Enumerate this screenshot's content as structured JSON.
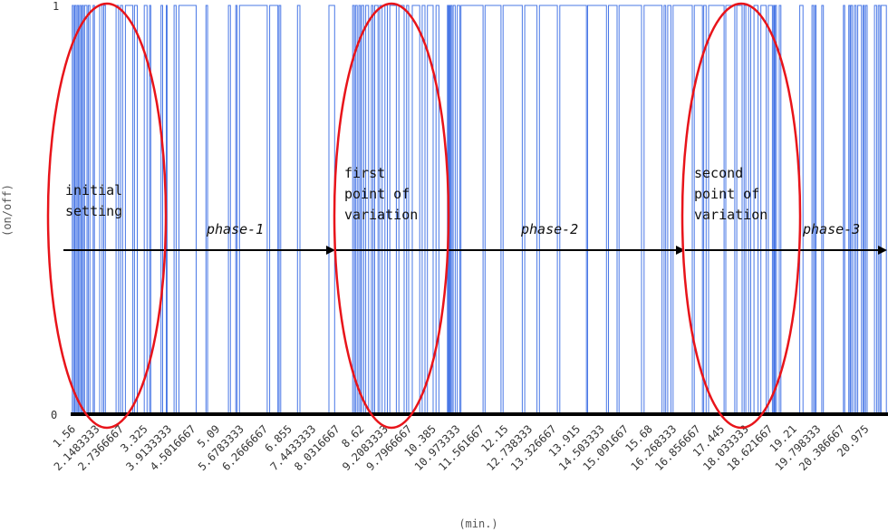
{
  "chart_data": {
    "type": "line",
    "xlabel": "(min.)",
    "ylabel": "(on/off)",
    "xlim": [
      1.56,
      21.56
    ],
    "ylim": [
      0,
      1
    ],
    "y_ticks": [
      "0",
      "1"
    ],
    "x_tick_labels": [
      "1.56",
      "2.1483333",
      "2.7366667",
      "3.325",
      "3.9133333",
      "4.5016667",
      "5.09",
      "5.6783333",
      "6.2666667",
      "6.855",
      "7.4433333",
      "8.0316667",
      "8.62",
      "9.2083333",
      "9.7966667",
      "10.385",
      "10.973333",
      "11.561667",
      "12.15",
      "12.738333",
      "13.326667",
      "13.915",
      "14.503333",
      "15.091667",
      "15.68",
      "16.268333",
      "16.856667",
      "17.445",
      "18.033333",
      "18.621667",
      "19.21",
      "19.798333",
      "20.386667",
      "20.975"
    ],
    "series": [
      {
        "color": "#4a78e6",
        "switch_times": [
          1.6,
          1.63,
          1.66,
          1.69,
          1.72,
          1.75,
          1.78,
          1.81,
          1.84,
          1.87,
          1.9,
          1.96,
          1.99,
          2.03,
          2.11,
          2.14,
          2.27,
          2.33,
          2.37,
          2.41,
          2.67,
          2.73,
          2.78,
          2.83,
          2.9,
          3.08,
          3.12,
          3.19,
          3.36,
          3.43,
          3.49,
          3.52,
          3.77,
          3.81,
          3.9,
          3.92,
          4.09,
          4.14,
          4.21,
          4.63,
          4.87,
          4.91,
          5.42,
          5.47,
          5.6,
          5.63,
          5.69,
          6.37,
          6.43,
          6.63,
          6.66,
          6.7,
          7.11,
          7.17,
          7.88,
          8.02,
          8.46,
          8.5,
          8.53,
          8.57,
          8.61,
          8.65,
          8.68,
          8.73,
          8.78,
          8.85,
          8.92,
          8.96,
          9.0,
          9.08,
          9.12,
          9.18,
          9.25,
          9.31,
          9.37,
          9.53,
          9.59,
          9.72,
          9.78,
          9.83,
          9.92,
          10.1,
          10.16,
          10.23,
          10.29,
          10.43,
          10.5,
          10.57,
          10.78,
          10.8,
          10.82,
          10.84,
          10.86,
          10.89,
          10.92,
          10.97,
          11.02,
          11.08,
          11.11,
          11.65,
          11.7,
          12.09,
          12.14,
          12.61,
          12.67,
          12.97,
          13.03,
          13.47,
          13.53,
          14.18,
          14.21,
          14.67,
          14.72,
          14.93,
          14.98,
          15.53,
          15.59,
          16.03,
          16.08,
          16.12,
          16.17,
          16.25,
          16.3,
          16.77,
          16.82,
          17.02,
          17.05,
          17.11,
          17.17,
          17.55,
          17.59,
          17.81,
          17.86,
          17.99,
          18.04,
          18.08,
          18.15,
          18.2,
          18.28,
          18.38,
          18.45,
          18.58,
          18.63,
          18.73,
          18.76,
          18.78,
          18.8,
          18.83,
          18.9,
          18.94,
          19.4,
          19.48,
          19.7,
          19.74,
          19.77,
          19.8,
          19.94,
          19.98,
          20.47,
          20.5,
          20.6,
          20.63,
          20.65,
          20.69,
          20.74,
          20.78,
          20.82,
          20.91,
          20.95,
          20.98,
          21.01,
          21.05,
          21.23,
          21.28,
          21.32,
          21.36,
          21.39,
          21.52
        ]
      }
    ],
    "annotations": {
      "initial": [
        "initial",
        "setting"
      ],
      "first": [
        "first",
        "point of",
        "variation"
      ],
      "second": [
        "second",
        "point of",
        "variation"
      ],
      "phases": [
        "phase-1",
        "phase-2",
        "phase-3"
      ]
    }
  }
}
